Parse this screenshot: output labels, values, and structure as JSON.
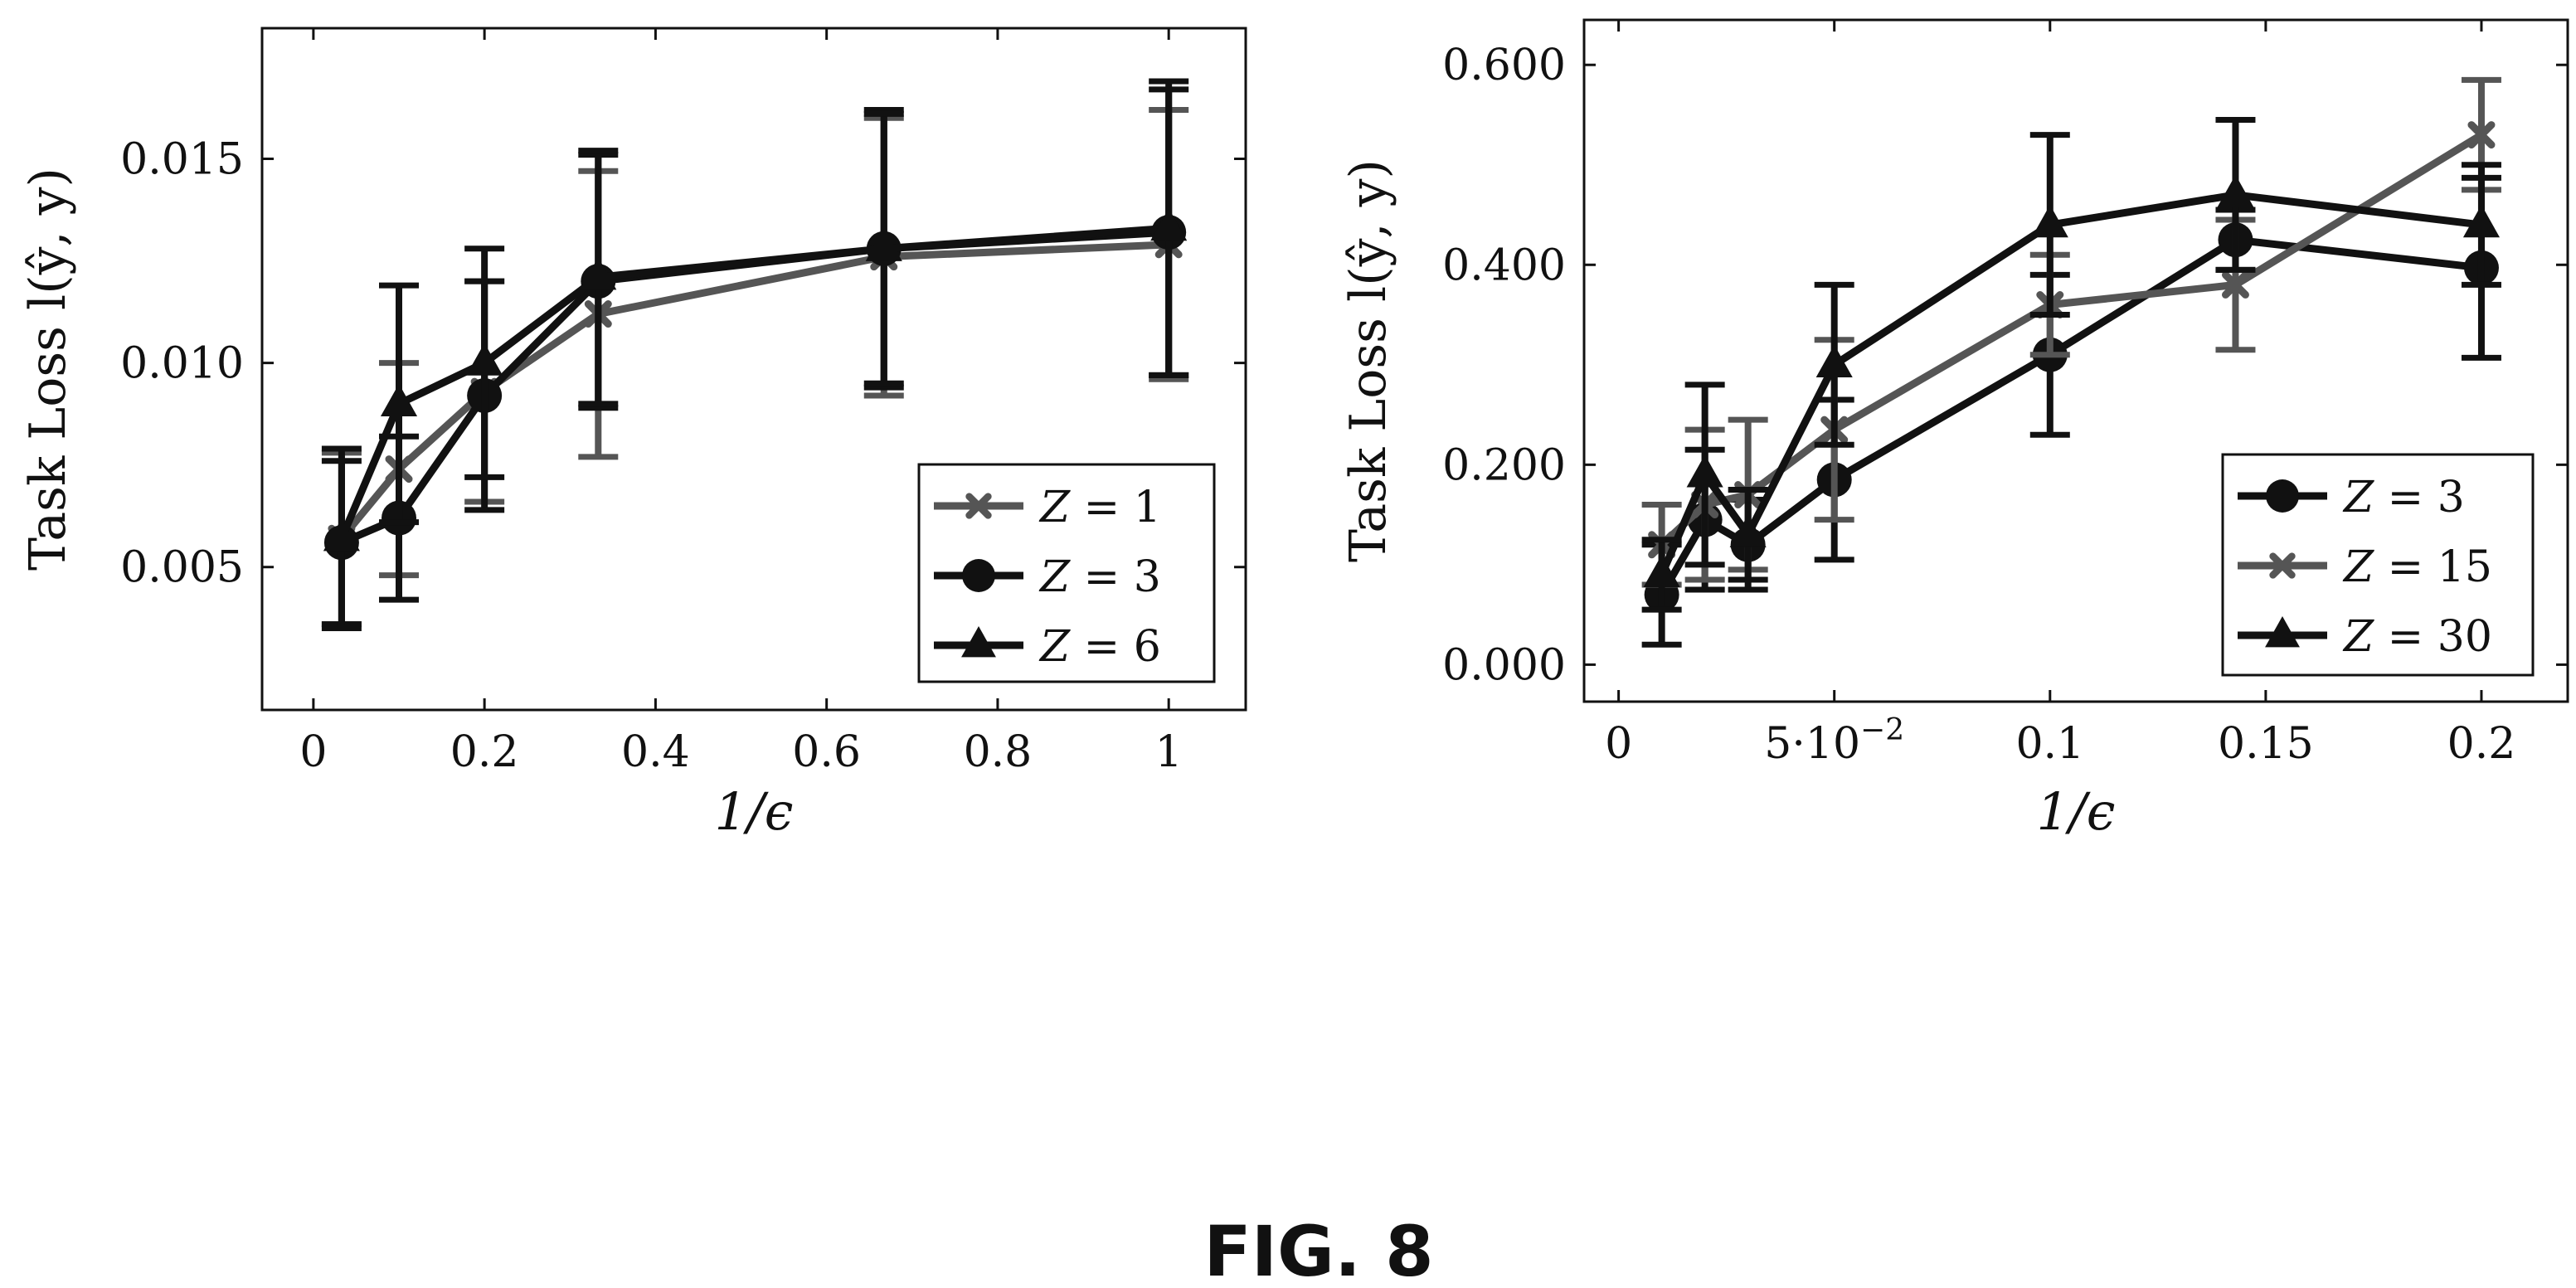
{
  "figure_label": "FIG. 8",
  "colors": {
    "dark": "#111111",
    "gray": "#555555",
    "background": "#ffffff"
  },
  "chart_data": [
    {
      "type": "line",
      "xlabel": "1/ϵ",
      "ylabel": "Task Loss l(ŷ, y)",
      "xlim": [
        -0.06,
        1.09
      ],
      "ylim": [
        0.0015,
        0.0182
      ],
      "xticks": [
        {
          "v": 0,
          "label": "0"
        },
        {
          "v": 0.2,
          "label": "0.2"
        },
        {
          "v": 0.4,
          "label": "0.4"
        },
        {
          "v": 0.6,
          "label": "0.6"
        },
        {
          "v": 0.8,
          "label": "0.8"
        },
        {
          "v": 1,
          "label": "1"
        }
      ],
      "yticks": [
        {
          "v": 0.005,
          "label": "0.005"
        },
        {
          "v": 0.01,
          "label": "0.010"
        },
        {
          "v": 0.015,
          "label": "0.015"
        }
      ],
      "grid": false,
      "legend_position": "bottom-right",
      "series": [
        {
          "name": "Z = 1",
          "var": "Z",
          "num": "1",
          "marker": "x",
          "color": "#555555",
          "x": [
            0.033,
            0.1,
            0.2,
            0.333,
            0.667,
            1.0
          ],
          "y": [
            0.0057,
            0.0074,
            0.0093,
            0.0112,
            0.0126,
            0.0129
          ],
          "err": [
            0.0021,
            0.0026,
            0.0027,
            0.0035,
            0.0034,
            0.0033
          ]
        },
        {
          "name": "Z = 3",
          "var": "Z",
          "num": "3",
          "marker": "circle",
          "color": "#111111",
          "x": [
            0.033,
            0.1,
            0.2,
            0.333,
            0.667,
            1.0
          ],
          "y": [
            0.0056,
            0.0062,
            0.0092,
            0.012,
            0.0128,
            0.0132
          ],
          "err": [
            0.002,
            0.002,
            0.0028,
            0.0031,
            0.0034,
            0.0035
          ]
        },
        {
          "name": "Z = 6",
          "var": "Z",
          "num": "6",
          "marker": "triangle",
          "color": "#111111",
          "x": [
            0.033,
            0.1,
            0.2,
            0.333,
            0.667,
            1.0
          ],
          "y": [
            0.0057,
            0.009,
            0.01,
            0.0121,
            0.0128,
            0.0133
          ],
          "err": [
            0.0022,
            0.0029,
            0.0028,
            0.0031,
            0.0033,
            0.0036
          ]
        }
      ]
    },
    {
      "type": "line",
      "xlabel": "1/ϵ",
      "ylabel": "Task Loss l(ŷ, y)",
      "xlim": [
        -0.008,
        0.22
      ],
      "ylim": [
        -0.037,
        0.645
      ],
      "xticks": [
        {
          "v": 0,
          "label": "0"
        },
        {
          "v": 0.05,
          "label": "5·10",
          "sup": "−2"
        },
        {
          "v": 0.1,
          "label": "0.1"
        },
        {
          "v": 0.15,
          "label": "0.15"
        },
        {
          "v": 0.2,
          "label": "0.2"
        }
      ],
      "yticks": [
        {
          "v": 0,
          "label": "0.000"
        },
        {
          "v": 0.2,
          "label": "0.200"
        },
        {
          "v": 0.4,
          "label": "0.400"
        },
        {
          "v": 0.6,
          "label": "0.600"
        }
      ],
      "grid": false,
      "legend_position": "bottom-right",
      "series": [
        {
          "name": "Z = 3",
          "var": "Z",
          "num": "3",
          "marker": "circle",
          "color": "#111111",
          "x": [
            0.01,
            0.02,
            0.03,
            0.05,
            0.1,
            0.143,
            0.2
          ],
          "y": [
            0.07,
            0.145,
            0.12,
            0.185,
            0.31,
            0.425,
            0.397
          ],
          "err": [
            0.05,
            0.07,
            0.045,
            0.08,
            0.08,
            0.03,
            0.09
          ]
        },
        {
          "name": "Z = 15",
          "var": "Z",
          "num": "15",
          "marker": "x",
          "color": "#555555",
          "x": [
            0.01,
            0.02,
            0.03,
            0.05,
            0.1,
            0.143,
            0.2
          ],
          "y": [
            0.12,
            0.16,
            0.17,
            0.235,
            0.36,
            0.38,
            0.53
          ],
          "err": [
            0.04,
            0.075,
            0.075,
            0.09,
            0.05,
            0.065,
            0.055
          ]
        },
        {
          "name": "Z = 30",
          "var": "Z",
          "num": "30",
          "marker": "triangle",
          "color": "#111111",
          "x": [
            0.01,
            0.02,
            0.03,
            0.05,
            0.1,
            0.143,
            0.2
          ],
          "y": [
            0.09,
            0.19,
            0.13,
            0.3,
            0.44,
            0.47,
            0.44
          ],
          "err": [
            0.035,
            0.09,
            0.045,
            0.08,
            0.09,
            0.075,
            0.06
          ]
        }
      ]
    }
  ]
}
